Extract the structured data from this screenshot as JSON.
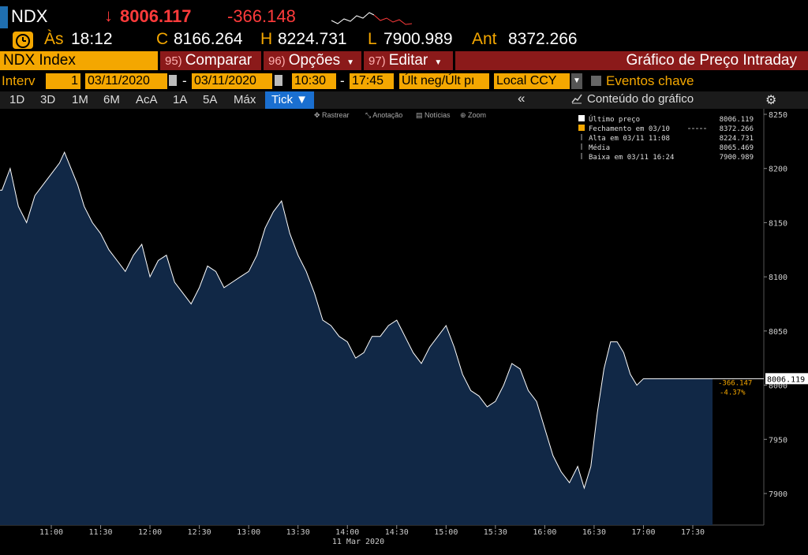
{
  "header": {
    "ticker": "NDX",
    "arrow": "↓",
    "last_price": "8006.117",
    "change": "-366.148"
  },
  "quote": {
    "time_label": "Às",
    "time": "18:12",
    "close_label": "C",
    "close": "8166.264",
    "high_label": "H",
    "high": "8224.731",
    "low_label": "L",
    "low": "7900.989",
    "prev_label": "Ant",
    "prev": "8372.266"
  },
  "toolbar": {
    "security": "NDX Index",
    "compare_num": "95)",
    "compare": "Comparar",
    "options_num": "96)",
    "options": "Opções",
    "edit_num": "97)",
    "edit": "Editar",
    "title": "Gráfico de Preço Intraday"
  },
  "params": {
    "interval_label": "Interv",
    "interval": "1",
    "start_date": "03/11/2020",
    "end_date": "03/11/2020",
    "start_time": "10:30",
    "end_time": "17:45",
    "field": "Últ neg/Últ pı",
    "currency": "Local CCY",
    "events": "Eventos chave"
  },
  "ranges": [
    "1D",
    "3D",
    "1M",
    "6M",
    "AcA",
    "1A",
    "5A",
    "Máx"
  ],
  "range_selected": "Tick ▼",
  "chart_content_label": "Conteúdo do gráfico",
  "chart_tools": [
    "Rastrear",
    "Anotação",
    "Notícias",
    "Zoom"
  ],
  "legend": [
    {
      "label": "Último preço",
      "value": "8006.119",
      "color": "#ffffff"
    },
    {
      "label": "Fechamento em 03/10",
      "value": "8372.266",
      "color": "#f4a700",
      "dashed": true
    },
    {
      "label": "Alta em 03/11 11:08",
      "value": "8224.731"
    },
    {
      "label": "Média",
      "value": "8065.469"
    },
    {
      "label": "Baixa em 03/11 16:24",
      "value": "7900.989"
    }
  ],
  "chart_data": {
    "type": "area",
    "x_ticks": [
      "11:00",
      "11:30",
      "12:00",
      "12:30",
      "13:00",
      "13:30",
      "14:00",
      "14:30",
      "15:00",
      "15:30",
      "16:00",
      "16:30",
      "17:00",
      "17:30"
    ],
    "x_date_label": "11 Mar 2020",
    "y_ticks": [
      8250,
      8200,
      8150,
      8100,
      8050,
      8000,
      7950,
      7900
    ],
    "ylim": [
      7870,
      8255
    ],
    "last_value_label": "8006.119",
    "change_label": "-366.147",
    "change_pct_label": "-4.37%",
    "series": [
      {
        "x": [
          "10:30",
          "10:35",
          "10:40",
          "10:45",
          "10:50",
          "10:55",
          "11:00",
          "11:05",
          "11:08",
          "11:12",
          "11:16",
          "11:20",
          "11:25",
          "11:30",
          "11:35",
          "11:40",
          "11:45",
          "11:50",
          "11:55",
          "12:00",
          "12:05",
          "12:10",
          "12:15",
          "12:20",
          "12:25",
          "12:30",
          "12:35",
          "12:40",
          "12:45",
          "12:50",
          "12:55",
          "13:00",
          "13:05",
          "13:10",
          "13:15",
          "13:20",
          "13:25",
          "13:30",
          "13:35",
          "13:40",
          "13:45",
          "13:50",
          "13:55",
          "14:00",
          "14:05",
          "14:10",
          "14:15",
          "14:20",
          "14:25",
          "14:30",
          "14:35",
          "14:40",
          "14:45",
          "14:50",
          "14:55",
          "15:00",
          "15:05",
          "15:10",
          "15:15",
          "15:20",
          "15:25",
          "15:30",
          "15:35",
          "15:40",
          "15:45",
          "15:50",
          "15:55",
          "16:00",
          "16:05",
          "16:10",
          "16:15",
          "16:20",
          "16:24",
          "16:28",
          "16:32",
          "16:36",
          "16:40",
          "16:44",
          "16:48",
          "16:52",
          "16:56",
          "17:00"
        ],
        "values": [
          8180,
          8200,
          8165,
          8150,
          8175,
          8185,
          8195,
          8205,
          8215,
          8200,
          8185,
          8165,
          8150,
          8140,
          8125,
          8115,
          8105,
          8120,
          8130,
          8100,
          8115,
          8120,
          8095,
          8085,
          8075,
          8090,
          8110,
          8105,
          8090,
          8095,
          8100,
          8105,
          8120,
          8145,
          8160,
          8170,
          8140,
          8120,
          8105,
          8085,
          8060,
          8055,
          8045,
          8040,
          8025,
          8030,
          8045,
          8045,
          8055,
          8060,
          8045,
          8030,
          8020,
          8035,
          8045,
          8055,
          8035,
          8010,
          7995,
          7990,
          7980,
          7985,
          8000,
          8020,
          8015,
          7995,
          7985,
          7960,
          7935,
          7920,
          7910,
          7925,
          7905,
          7925,
          7975,
          8015,
          8040,
          8040,
          8030,
          8010,
          8000,
          8006
        ]
      }
    ]
  }
}
